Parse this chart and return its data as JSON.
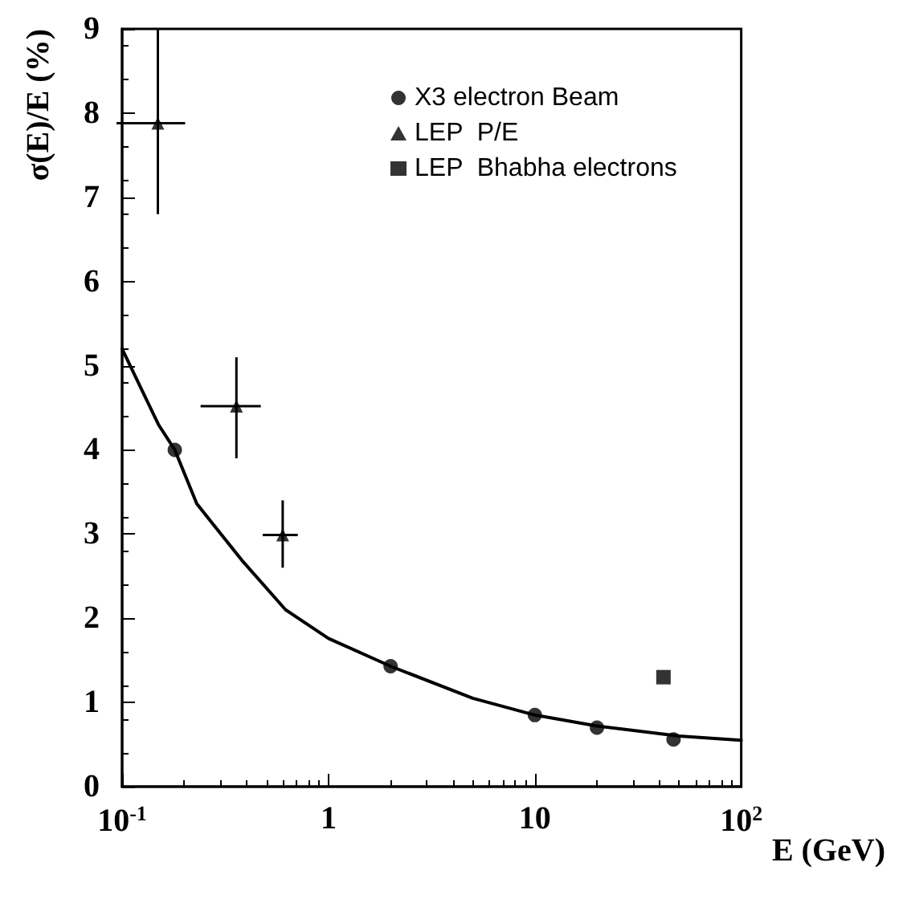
{
  "chart_data": {
    "type": "scatter",
    "xlabel": "E (GeV)",
    "ylabel": "σ(E)/E (%)",
    "log": "x",
    "grid": false,
    "legend": "top right",
    "xlim": [
      0.1,
      100
    ],
    "xticks": [
      {
        "value": 0.1,
        "label": "10$^{-1}$"
      },
      1,
      10,
      {
        "value": 100,
        "label": "10$^{2}$"
      }
    ],
    "ylim": [
      0,
      9
    ],
    "yticks": [
      0,
      1,
      2,
      3,
      4,
      5,
      6,
      7,
      8,
      9
    ],
    "series": [
      {
        "name": "X3 electron Beam",
        "marker": "circle",
        "color": "#000000",
        "x": [
          0.18,
          2,
          10,
          20,
          47
        ],
        "values": [
          4.0,
          1.43,
          0.85,
          0.7,
          0.56
        ]
      },
      {
        "name": "LEP  P/E",
        "marker": "triangle",
        "color": "#000000",
        "x": [
          0.149,
          0.358,
          0.6
        ],
        "values": [
          7.88,
          4.52,
          2.99
        ],
        "errors": [
          [
            6.8,
            9.0
          ],
          [
            3.9,
            5.1
          ],
          [
            2.6,
            3.4
          ]
        ],
        "xerrors": [
          [
            0.094,
            0.202
          ],
          [
            0.24,
            0.47
          ],
          [
            0.48,
            0.71
          ]
        ]
      },
      {
        "name": "LEP  Bhabha electrons",
        "marker": "square",
        "color": "#000000",
        "x": [
          42
        ],
        "values": [
          1.3
        ]
      },
      {
        "type": "line",
        "marker": "none",
        "line_style": "solid",
        "color": "#000000",
        "x": [
          0.1,
          0.15,
          0.18,
          0.23,
          0.38,
          0.62,
          1,
          2,
          5,
          10,
          20,
          50,
          100
        ],
        "values": [
          5.2,
          4.3,
          4.0,
          3.36,
          2.69,
          2.1,
          1.76,
          1.43,
          1.05,
          0.85,
          0.72,
          0.6,
          0.55
        ]
      }
    ]
  }
}
